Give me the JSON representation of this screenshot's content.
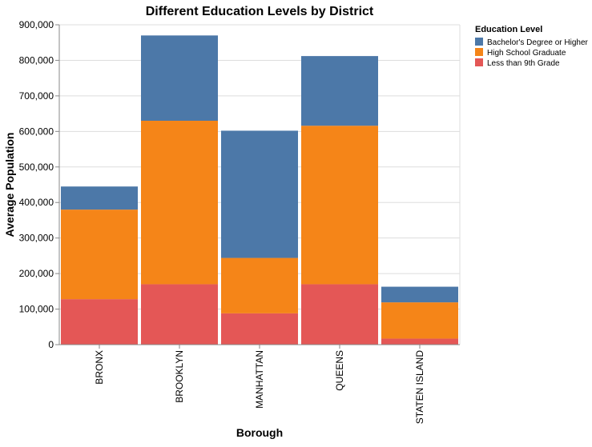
{
  "chart_data": {
    "type": "bar",
    "stacked": true,
    "title": "Different Education Levels by District",
    "xlabel": "Borough",
    "ylabel": "Average Population",
    "categories": [
      "BRONX",
      "BROOKLYN",
      "MANHATTAN",
      "QUEENS",
      "STATEN ISLAND"
    ],
    "ylim": [
      0,
      900000
    ],
    "yticks": [
      "0",
      "100,000",
      "200,000",
      "300,000",
      "400,000",
      "500,000",
      "600,000",
      "700,000",
      "800,000",
      "900,000"
    ],
    "grid": true,
    "legend": {
      "title": "Education Level",
      "placement": "top-right"
    },
    "series": [
      {
        "name": "Less than 9th Grade",
        "color": "#e45756",
        "values": [
          128000,
          170000,
          88000,
          170000,
          17000
        ]
      },
      {
        "name": "High School Graduate",
        "color": "#f58518",
        "values": [
          252000,
          460000,
          156000,
          446000,
          102000
        ]
      },
      {
        "name": "Bachelor's Degree or Higher",
        "color": "#4c78a8",
        "values": [
          65000,
          240000,
          358000,
          196000,
          44000
        ]
      }
    ],
    "legend_order": [
      "Bachelor's Degree or Higher",
      "High School Graduate",
      "Less than 9th Grade"
    ]
  }
}
